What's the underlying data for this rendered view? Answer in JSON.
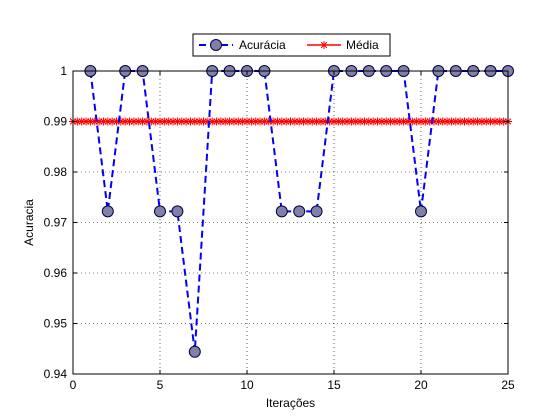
{
  "chart_data": {
    "type": "line",
    "xlabel": "Iterações",
    "ylabel": "Acuracia",
    "xlim": [
      0,
      25
    ],
    "ylim": [
      0.94,
      1.0
    ],
    "xticks": [
      0,
      5,
      10,
      15,
      20,
      25
    ],
    "xtick_labels": [
      "0",
      "5",
      "10",
      "15",
      "20",
      "25"
    ],
    "yticks": [
      0.94,
      0.95,
      0.96,
      0.97,
      0.98,
      0.99,
      1.0
    ],
    "ytick_labels": [
      "0.94",
      "0.95",
      "0.96",
      "0.97",
      "0.98",
      "0.99",
      "1"
    ],
    "grid": true,
    "legend_position": "top-center",
    "x": [
      1,
      2,
      3,
      4,
      5,
      6,
      7,
      8,
      9,
      10,
      11,
      12,
      13,
      14,
      15,
      16,
      17,
      18,
      19,
      20,
      21,
      22,
      23,
      24,
      25
    ],
    "series": [
      {
        "name": "Acurácia",
        "color": "#0000ff",
        "marker_fill": "#8080a8",
        "line_style": "dashed",
        "marker": "circle",
        "values": [
          1,
          0.9722,
          1,
          1,
          0.9722,
          0.9722,
          0.9444,
          1,
          1,
          1,
          1,
          0.9722,
          0.9722,
          0.9722,
          1,
          1,
          1,
          1,
          1,
          0.9722,
          1,
          1,
          1,
          1,
          1
        ]
      },
      {
        "name": "Média",
        "color": "#ff0000",
        "line_style": "solid",
        "marker": "star",
        "x_range": [
          0,
          25
        ],
        "x_step": 0.25,
        "value": 0.99
      }
    ]
  }
}
